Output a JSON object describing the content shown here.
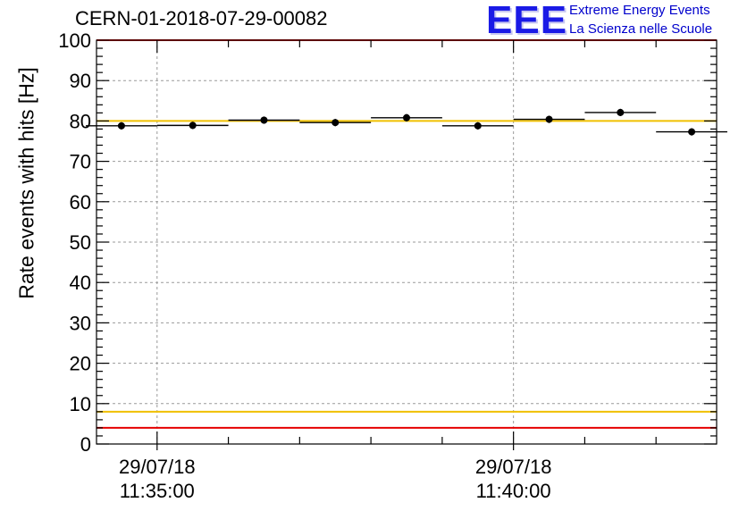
{
  "chart_data": {
    "type": "scatter",
    "title": "CERN-01-2018-07-29-00082",
    "ylabel": "Rate events with hits [Hz]",
    "xlabel": "",
    "ylim": [
      0,
      100
    ],
    "yticks": [
      0,
      10,
      20,
      30,
      40,
      50,
      60,
      70,
      80,
      90,
      100
    ],
    "xlim_minutes": [
      -0.85,
      7.85
    ],
    "x_major_ticks": [
      {
        "minute": 0,
        "date": "29/07/18",
        "time": "11:35:00"
      },
      {
        "minute": 5,
        "date": "29/07/18",
        "time": "11:40:00"
      }
    ],
    "grid": true,
    "series": [
      {
        "name": "rate",
        "bin_width_minutes": 1,
        "x_minutes": [
          -0.5,
          0.5,
          1.5,
          2.5,
          3.5,
          4.5,
          5.5,
          6.5,
          7.5
        ],
        "values": [
          78.8,
          78.9,
          80.2,
          79.6,
          80.8,
          78.8,
          80.4,
          82.1,
          77.3
        ],
        "errors": [
          0.9,
          0.9,
          0.9,
          0.9,
          0.9,
          0.9,
          0.9,
          0.9,
          0.9
        ]
      }
    ],
    "reference_lines": [
      {
        "name": "upper-yellow",
        "value": 80,
        "color": "#f0c000"
      },
      {
        "name": "lower-yellow",
        "value": 8,
        "color": "#f0c000"
      },
      {
        "name": "upper-red",
        "value": 100,
        "color": "#e60000"
      },
      {
        "name": "lower-red",
        "value": 4,
        "color": "#e60000"
      }
    ]
  },
  "logo": {
    "mark": "EEE",
    "line1": "Extreme Energy Events",
    "line2": "La Scienza nelle Scuole"
  }
}
